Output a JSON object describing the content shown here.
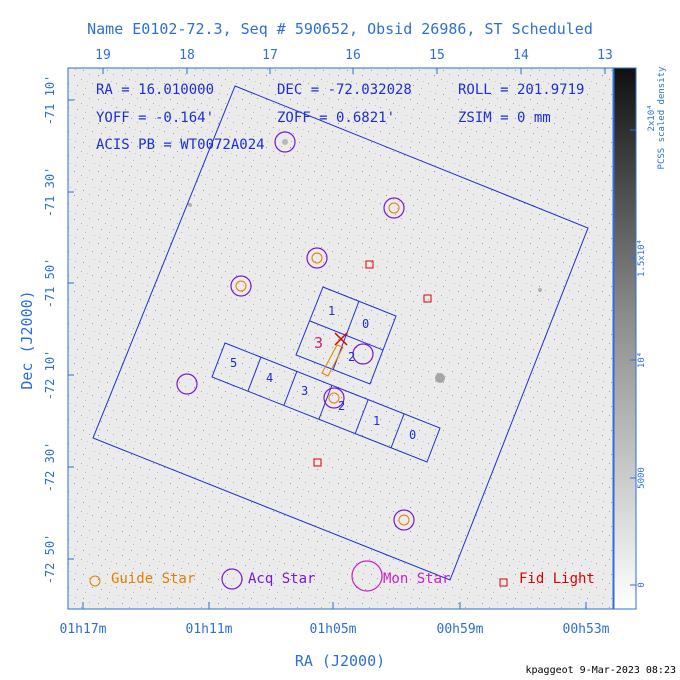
{
  "title": "Name E0102-72.3, Seq # 590652, Obsid 26986, ST Scheduled",
  "top_ticks": [
    "19",
    "18",
    "17",
    "16",
    "15",
    "14",
    "13"
  ],
  "ra_ticks": [
    "01h17m",
    "01h11m",
    "01h05m",
    "00h59m",
    "00h53m"
  ],
  "dec_ticks": [
    "-71 10'",
    "-71 30'",
    "-71 50'",
    "-72 10'",
    "-72 30'",
    "-72 50'"
  ],
  "xlabel": "RA (J2000)",
  "ylabel": "Dec (J2000)",
  "info": {
    "ra": "RA = 16.010000",
    "dec": "DEC = -72.032028",
    "roll": "ROLL = 201.9719",
    "yoff": "YOFF =  -0.164'",
    "zoff": "ZOFF =  0.6821'",
    "zsim": "ZSIM = 0 mm",
    "acis": "ACIS PB = WT0072A024"
  },
  "chips": {
    "top": [
      "1",
      "0",
      "3",
      "2"
    ],
    "row": [
      "5",
      "4",
      "3",
      "2",
      "1",
      "0"
    ],
    "sim_label": "3"
  },
  "legend": {
    "guide": "Guide Star",
    "acq": "Acq Star",
    "mon": "Mon Star",
    "fid": "Fid Light"
  },
  "colorbar": {
    "label_line1": "2x10⁴",
    "label_line2": "PCSS scaled density",
    "ticks": [
      "1.5x10⁴",
      "10⁴",
      "5000",
      "0"
    ]
  },
  "footer": "kpaggeot  9-Mar-2023 08:23",
  "colors": {
    "axis": "#2e6fd6",
    "field": "#1d2fd6",
    "guide": "#e57e00",
    "acq": "#7a18d6",
    "mon": "#cc20cc",
    "fid": "#e00000"
  }
}
